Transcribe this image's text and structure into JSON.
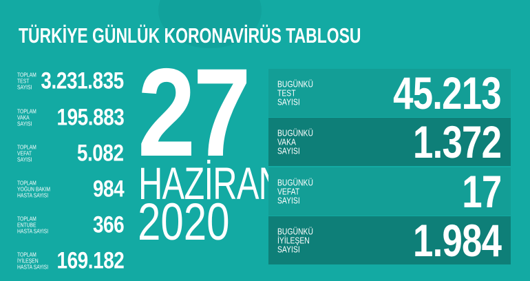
{
  "title": "TÜRKİYE GÜNLÜK KORONAVİRÜS TABLOSU",
  "colors": {
    "background": "#13aaa3",
    "box_light": "#139e96",
    "box_dark": "#0e7f78",
    "text": "#ffffff"
  },
  "totals": [
    {
      "label": [
        "TOPLAM",
        "TEST",
        "SAYISI"
      ],
      "value": "3.231.835"
    },
    {
      "label": [
        "TOPLAM",
        "VAKA",
        "SAYISI"
      ],
      "value": "195.883"
    },
    {
      "label": [
        "TOPLAM",
        "VEFAT",
        "SAYISI"
      ],
      "value": "5.082"
    },
    {
      "label": [
        "TOPLAM",
        "YOĞUN BAKIM",
        "HASTA SAYISI"
      ],
      "value": "984"
    },
    {
      "label": [
        "TOPLAM",
        "ENTUBE",
        "HASTA SAYISI"
      ],
      "value": "366"
    },
    {
      "label": [
        "TOPLAM",
        "İYİLEŞEN",
        "HASTA SAYISI"
      ],
      "value": "169.182"
    }
  ],
  "date": {
    "day": "27",
    "month": "HAZİRAN",
    "year": "2020"
  },
  "today": [
    {
      "label": [
        "BUGÜNKÜ",
        "TEST",
        "SAYISI"
      ],
      "value": "45.213"
    },
    {
      "label": [
        "BUGÜNKÜ",
        "VAKA",
        "SAYISI"
      ],
      "value": "1.372"
    },
    {
      "label": [
        "BUGÜNKÜ",
        "VEFAT",
        "SAYISI"
      ],
      "value": "17"
    },
    {
      "label": [
        "BUGÜNKÜ",
        "İYİLEŞEN",
        "SAYISI"
      ],
      "value": "1.984"
    }
  ]
}
